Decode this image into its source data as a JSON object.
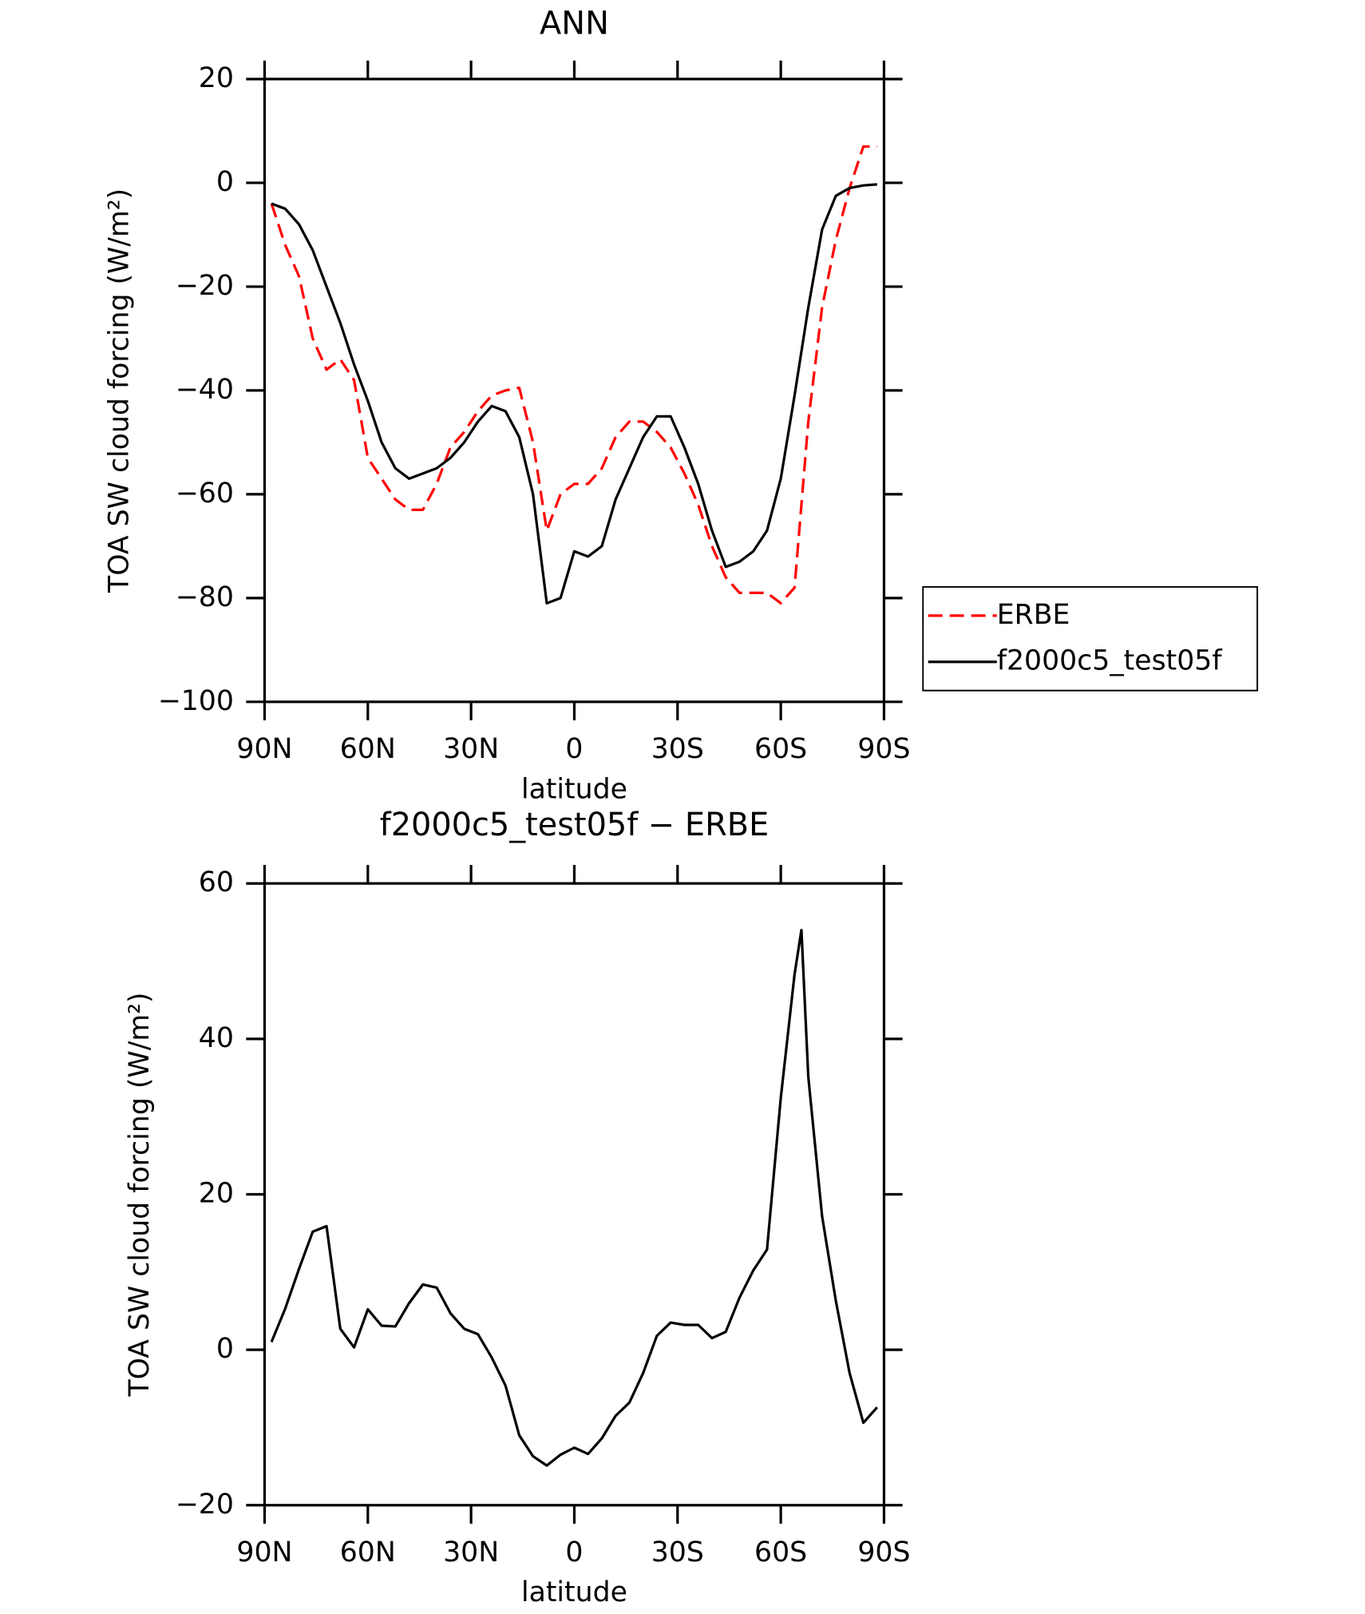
{
  "chart_data": [
    {
      "type": "line",
      "title": "ANN",
      "xlabel": "latitude",
      "ylabel": "TOA SW cloud forcing (W/m²)",
      "x": [
        88,
        84,
        80,
        76,
        72,
        68,
        64,
        60,
        56,
        52,
        48,
        44,
        40,
        36,
        32,
        28,
        24,
        20,
        16,
        12,
        8,
        4,
        0,
        -4,
        -8,
        -12,
        -16,
        -20,
        -24,
        -28,
        -32,
        -36,
        -40,
        -44,
        -48,
        -52,
        -56,
        -60,
        -64,
        -68,
        -72,
        -76,
        -80,
        -84,
        -88
      ],
      "xlim": [
        90,
        -90
      ],
      "xticks": [
        {
          "value": 90,
          "label": "90N"
        },
        {
          "value": 60,
          "label": "60N"
        },
        {
          "value": 30,
          "label": "30N"
        },
        0,
        {
          "value": -30,
          "label": "30S"
        },
        {
          "value": -60,
          "label": "60S"
        },
        {
          "value": -90,
          "label": "90S"
        }
      ],
      "ylim": [
        -100,
        20
      ],
      "yticks": [
        {
          "value": -100,
          "label": "−100"
        },
        {
          "value": -80,
          "label": "−80"
        },
        {
          "value": -60,
          "label": "−60"
        },
        {
          "value": -40,
          "label": "−40"
        },
        {
          "value": -20,
          "label": "−20"
        },
        0,
        20
      ],
      "legend": "right",
      "series": [
        {
          "name": "ERBE",
          "color": "#ff0000",
          "dash": true,
          "values": [
            -4,
            -12,
            -18,
            -30,
            -36,
            -34,
            -38,
            -53,
            -57,
            -61,
            -63,
            -63,
            -58,
            -51,
            -48,
            -44,
            -41,
            -40,
            -39.5,
            -50,
            -67,
            -60,
            -58,
            -58,
            -55,
            -49,
            -46,
            -46,
            -48,
            -51,
            -56,
            -62,
            -70,
            -76,
            -79,
            -79,
            -79,
            -81,
            -78,
            -46,
            -24,
            -11,
            -1,
            7,
            7
          ]
        },
        {
          "name": "f2000c5_test05f",
          "color": "#000000",
          "dash": false,
          "values": [
            -4,
            -5,
            -8,
            -13,
            -20,
            -27,
            -35,
            -42,
            -50,
            -55,
            -57,
            -56,
            -55,
            -53,
            -50,
            -46,
            -43,
            -44,
            -49,
            -60,
            -81,
            -80,
            -71,
            -72,
            -70,
            -61,
            -55,
            -49,
            -45,
            -45,
            -51,
            -58,
            -67,
            -74,
            -73,
            -71,
            -67,
            -57,
            -41,
            -24,
            -9,
            -2.5,
            -1,
            -0.5,
            -0.3
          ]
        }
      ]
    },
    {
      "type": "line",
      "title": "f2000c5_test05f − ERBE",
      "xlabel": "latitude",
      "ylabel": "TOA SW cloud forcing (W/m²)",
      "x": [
        88,
        84,
        80,
        76,
        72,
        68,
        64,
        60,
        56,
        52,
        48,
        44,
        40,
        36,
        32,
        28,
        24,
        20,
        16,
        12,
        8,
        4,
        0,
        -4,
        -8,
        -12,
        -16,
        -20,
        -24,
        -28,
        -32,
        -36,
        -40,
        -44,
        -48,
        -52,
        -56,
        -60,
        -64,
        -66,
        -68,
        -72,
        -76,
        -80,
        -84,
        -88
      ],
      "xlim": [
        90,
        -90
      ],
      "xticks": [
        {
          "value": 90,
          "label": "90N"
        },
        {
          "value": 60,
          "label": "60N"
        },
        {
          "value": 30,
          "label": "30N"
        },
        0,
        {
          "value": -30,
          "label": "30S"
        },
        {
          "value": -60,
          "label": "60S"
        },
        {
          "value": -90,
          "label": "90S"
        }
      ],
      "ylim": [
        -20,
        60
      ],
      "yticks": [
        {
          "value": -20,
          "label": "−20"
        },
        0,
        20,
        40,
        60
      ],
      "color": "#000000",
      "values": [
        1.0,
        5.3,
        10.4,
        15.2,
        15.9,
        2.7,
        0.3,
        5.2,
        3.1,
        3,
        6,
        8.4,
        8,
        4.7,
        2.7,
        2,
        -1,
        -4.6,
        -11,
        -13.7,
        -14.9,
        -13.5,
        -12.6,
        -13.4,
        -11.4,
        -8.5,
        -6.8,
        -3,
        1.8,
        3.5,
        3.2,
        3.2,
        1.5,
        2.3,
        6.7,
        10.2,
        12.9,
        32.4,
        48.3,
        54,
        35.1,
        17.2,
        6.3,
        -3,
        -9.4,
        -7.4
      ]
    }
  ]
}
